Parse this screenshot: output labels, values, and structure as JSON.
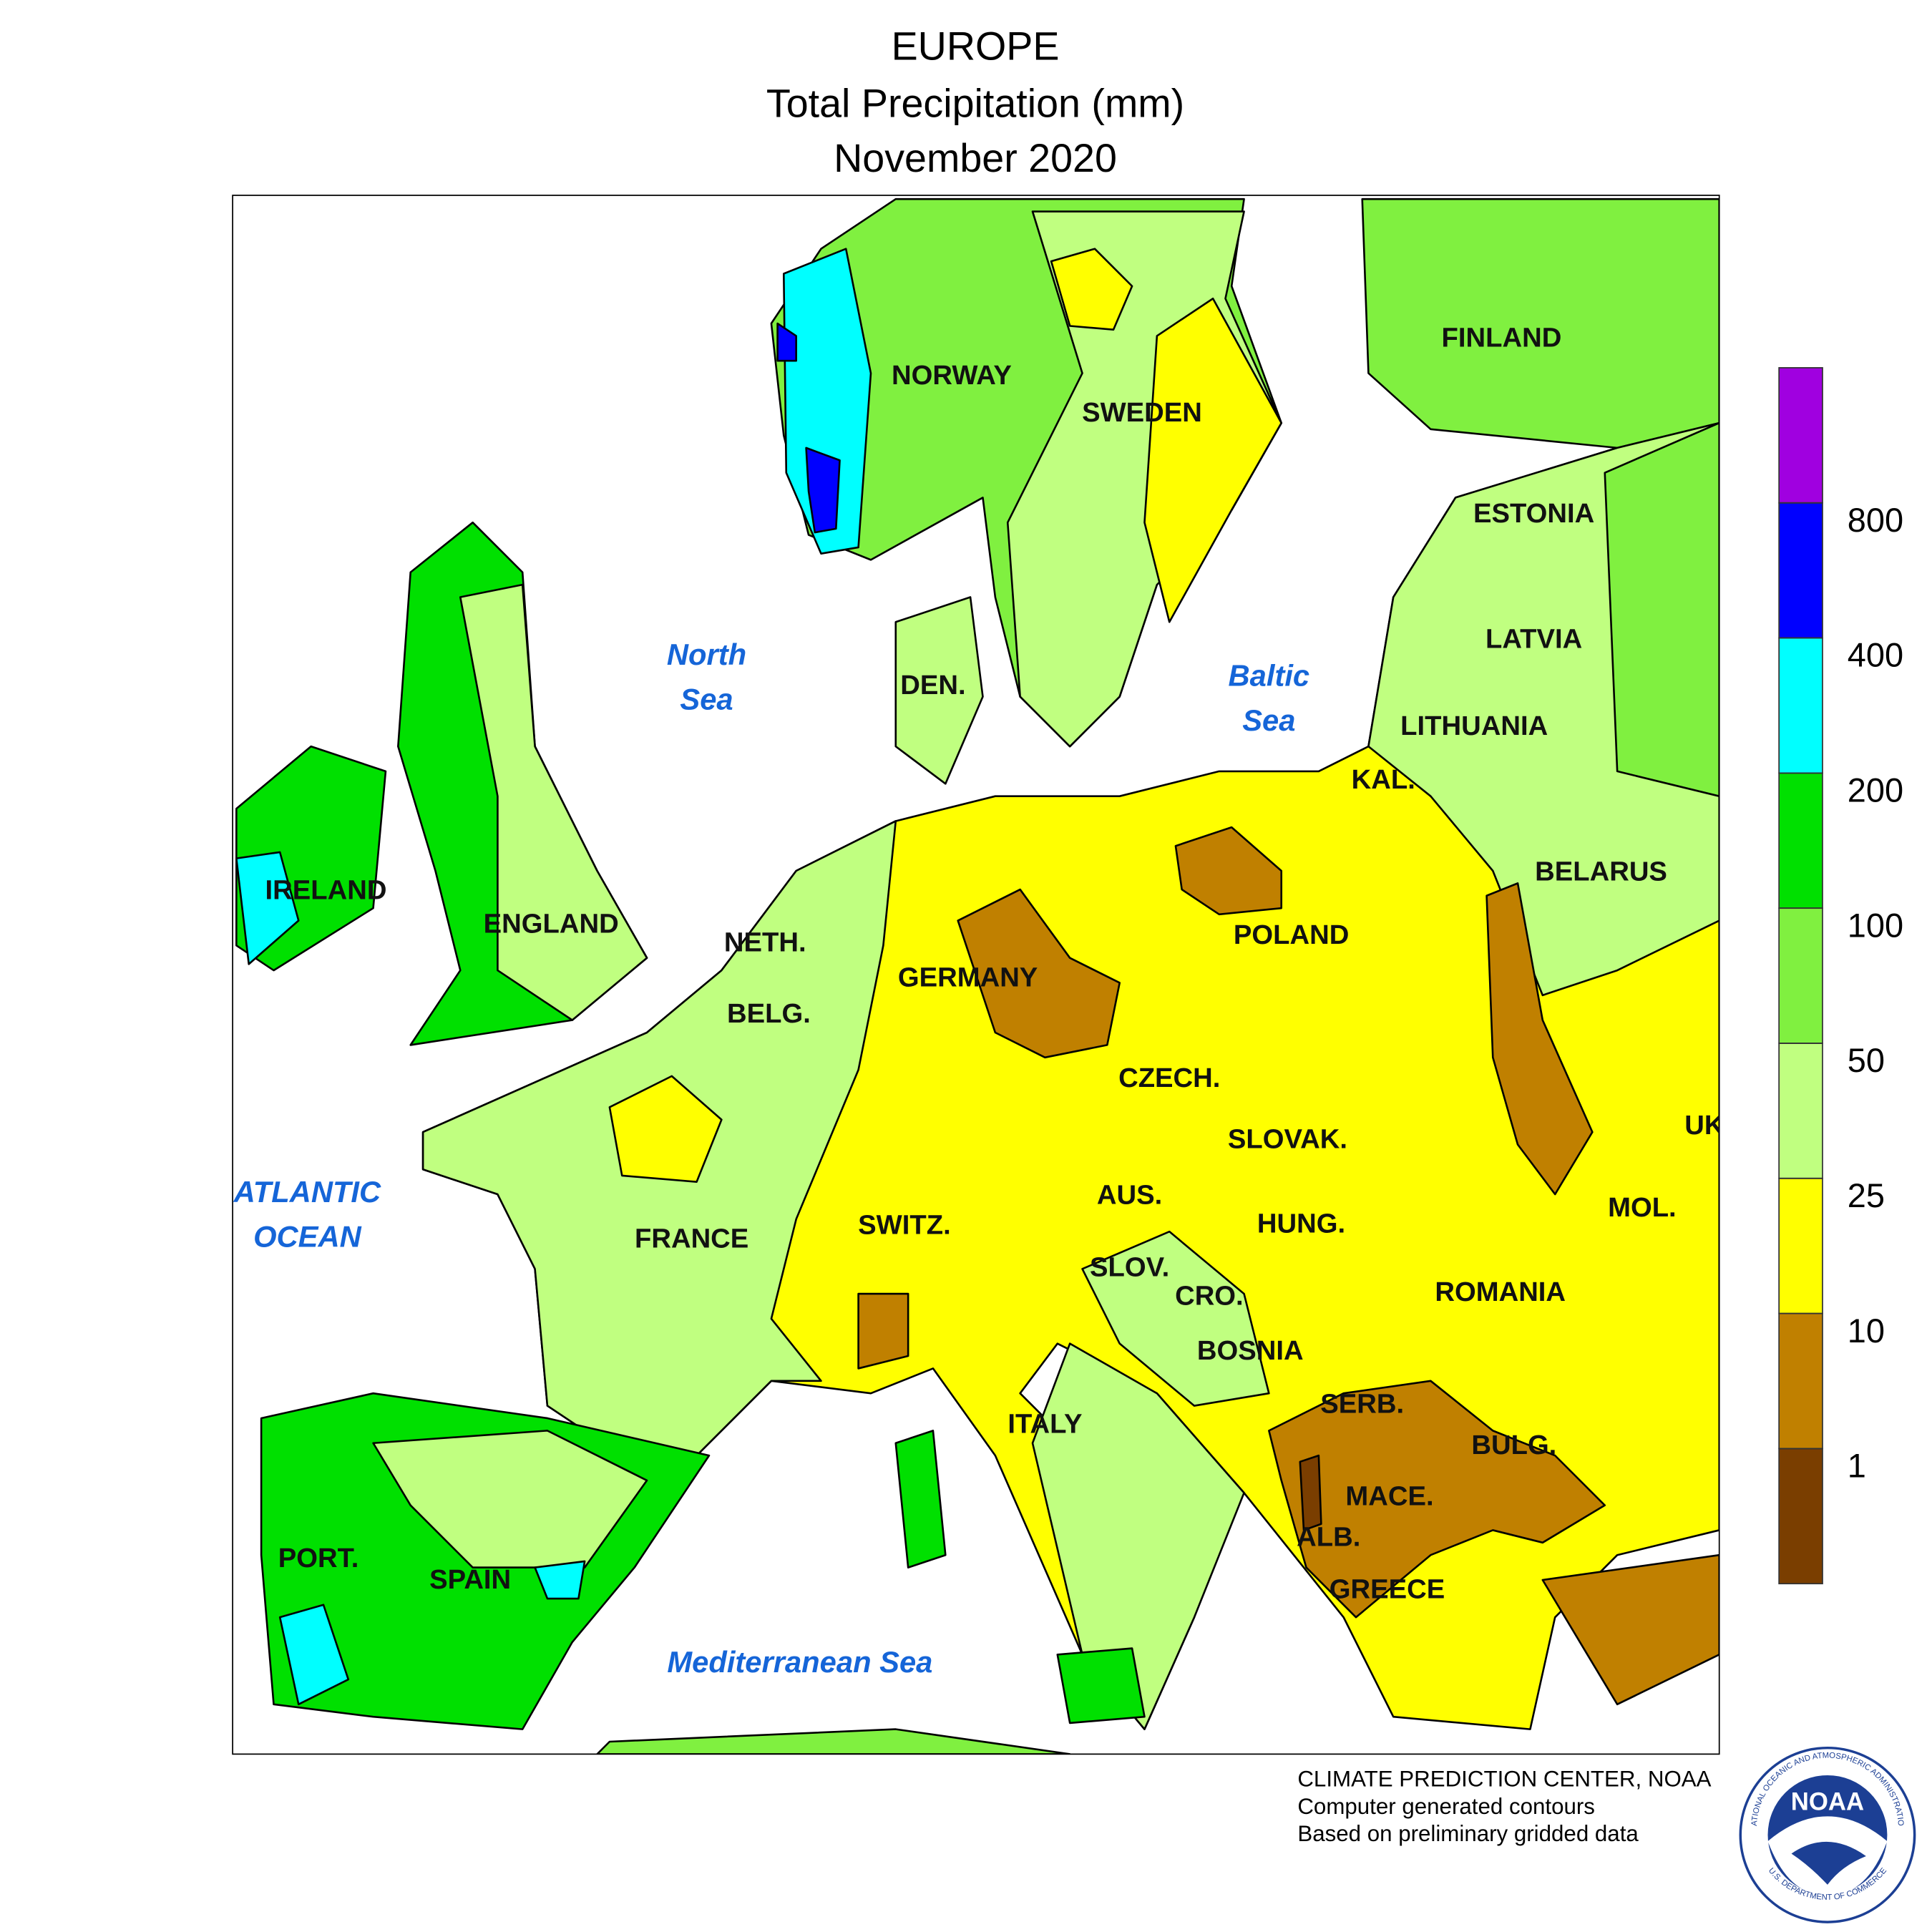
{
  "header": {
    "title": [
      "EUROPE",
      "Total Precipitation (mm)",
      "November 2020"
    ]
  },
  "countries": [
    "FINLAND",
    "NORWAY",
    "SWEDEN",
    "ESTONIA",
    "LATVIA",
    "LITHUANIA",
    "KAL.",
    "BELARUS",
    "DEN.",
    "IRELAND",
    "ENGLAND",
    "NETH.",
    "BELG.",
    "GERMANY",
    "POLAND",
    "CZECH.",
    "SLOVAK.",
    "UK",
    "AUS.",
    "HUNG.",
    "SWITZ.",
    "FRANCE",
    "SLOV.",
    "CRO.",
    "ROMANIA",
    "MOL.",
    "BOSNIA",
    "SERB.",
    "BULG.",
    "ITALY",
    "MACE.",
    "ALB.",
    "GREECE",
    "PORT.",
    "SPAIN"
  ],
  "seas": [
    [
      "North",
      "Sea"
    ],
    [
      "Baltic",
      "Sea"
    ],
    [
      "ATLANTIC",
      "OCEAN"
    ],
    [
      "Mediterranean Sea"
    ]
  ],
  "legend": {
    "levels": [
      1,
      10,
      25,
      50,
      100,
      200,
      400,
      800
    ],
    "colors": [
      "#7a3e00",
      "#c08000",
      "#ffff00",
      "#c0ff80",
      "#80f040",
      "#00e000",
      "#00ffff",
      "#0000ff",
      "#a000e0"
    ]
  },
  "credits": [
    "CLIMATE PREDICTION CENTER, NOAA",
    "Computer generated contours",
    "Based on preliminary gridded data"
  ],
  "logo": {
    "name": "NOAA",
    "top": "NATIONAL OCEANIC AND ATMOSPHERIC ADMINISTRATION",
    "bottom": "U.S. DEPARTMENT OF COMMERCE"
  }
}
